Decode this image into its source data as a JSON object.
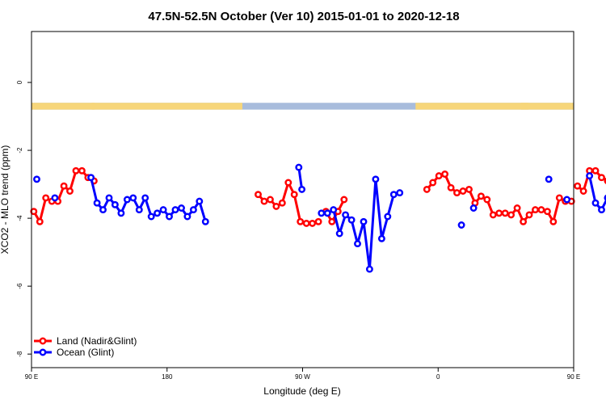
{
  "chart_data": {
    "type": "line",
    "title": "47.5N-52.5N October (Ver 10)   2015-01-01 to 2020-12-18",
    "xlabel": "Longitude (deg E)",
    "ylabel": "XCO2 - MLO trend (ppm)",
    "xlim": [
      90,
      450
    ],
    "ylim": [
      -8.4,
      1.5
    ],
    "x_ticks": [
      {
        "value": 90,
        "label": "90 E"
      },
      {
        "value": 180,
        "label": "180"
      },
      {
        "value": 270,
        "label": "90 W"
      },
      {
        "value": 360,
        "label": "0"
      },
      {
        "value": 450,
        "label": "90 E"
      },
      {
        "value": 540,
        "label": "180"
      }
    ],
    "y_ticks": [
      {
        "value": 0,
        "label": "0"
      },
      {
        "value": -2,
        "label": "-2"
      },
      {
        "value": -4,
        "label": "-4"
      },
      {
        "value": -6,
        "label": "-6"
      },
      {
        "value": -8,
        "label": "-8"
      }
    ],
    "legend_position": "bottom-left",
    "land_ocean_strip": {
      "y_range": [
        -0.8,
        -0.6
      ],
      "land_color": "#f7d67a",
      "ocean_color": "#a8bcdc",
      "land_segments": [
        [
          90,
          132
        ],
        [
          130,
          230
        ],
        [
          345,
          420
        ],
        [
          415,
          460
        ]
      ]
    },
    "series": [
      {
        "name": "Land (Nadir&Glint)",
        "color": "#ff0000",
        "segments": [
          [
            [
              91.5,
              -3.8
            ],
            [
              95.5,
              -4.1
            ],
            [
              99.5,
              -3.4
            ],
            [
              103.5,
              -3.5
            ],
            [
              107.5,
              -3.5
            ],
            [
              111.5,
              -3.05
            ],
            [
              115.5,
              -3.2
            ],
            [
              119.5,
              -2.6
            ],
            [
              123.5,
              -2.6
            ],
            [
              127.5,
              -2.8
            ],
            [
              131.5,
              -2.9
            ]
          ],
          [
            [
              240.5,
              -3.3
            ],
            [
              244.5,
              -3.5
            ],
            [
              248.5,
              -3.45
            ],
            [
              252.5,
              -3.65
            ],
            [
              256.5,
              -3.55
            ],
            [
              260.5,
              -2.95
            ],
            [
              264.5,
              -3.3
            ],
            [
              268.5,
              -4.1
            ],
            [
              272.5,
              -4.15
            ],
            [
              276.5,
              -4.15
            ],
            [
              280.5,
              -4.1
            ]
          ],
          [
            [
              285.5,
              -3.8
            ],
            [
              289.5,
              -4.1
            ],
            [
              293.5,
              -3.8
            ],
            [
              297.5,
              -3.45
            ]
          ],
          [
            [
              352.5,
              -3.15
            ],
            [
              356.5,
              -2.95
            ],
            [
              360.5,
              -2.75
            ],
            [
              364.5,
              -2.7
            ],
            [
              368.5,
              -3.1
            ],
            [
              372.5,
              -3.25
            ],
            [
              376.5,
              -3.2
            ],
            [
              380.5,
              -3.15
            ],
            [
              384.5,
              -3.55
            ],
            [
              388.5,
              -3.35
            ],
            [
              392.5,
              -3.45
            ],
            [
              396.5,
              -3.9
            ],
            [
              400.5,
              -3.85
            ],
            [
              404.5,
              -3.85
            ],
            [
              408.5,
              -3.9
            ],
            [
              412.5,
              -3.7
            ],
            [
              416.5,
              -4.1
            ],
            [
              420.5,
              -3.9
            ],
            [
              424.5,
              -3.75
            ],
            [
              428.5,
              -3.75
            ],
            [
              432.5,
              -3.8
            ],
            [
              436.5,
              -4.1
            ],
            [
              440.5,
              -3.4
            ],
            [
              444.5,
              -3.5
            ],
            [
              448.5,
              -3.5
            ]
          ],
          [
            [
              452.5,
              -3.05
            ],
            [
              456.5,
              -3.2
            ],
            [
              460.5,
              -2.6
            ],
            [
              464.5,
              -2.6
            ],
            [
              468.5,
              -2.8
            ],
            [
              472.5,
              -2.9
            ]
          ]
        ]
      },
      {
        "name": "Ocean (Glint)",
        "color": "#0000ff",
        "segments": [
          [
            [
              93.5,
              -2.85
            ]
          ],
          [
            [
              105.5,
              -3.4
            ]
          ],
          [
            [
              129.5,
              -2.8
            ],
            [
              133.5,
              -3.55
            ],
            [
              137.5,
              -3.75
            ],
            [
              141.5,
              -3.4
            ],
            [
              145.5,
              -3.6
            ],
            [
              149.5,
              -3.85
            ],
            [
              153.5,
              -3.45
            ],
            [
              157.5,
              -3.4
            ],
            [
              161.5,
              -3.75
            ],
            [
              165.5,
              -3.4
            ],
            [
              169.5,
              -3.95
            ],
            [
              173.5,
              -3.85
            ],
            [
              177.5,
              -3.75
            ],
            [
              181.5,
              -3.95
            ],
            [
              185.5,
              -3.75
            ],
            [
              189.5,
              -3.7
            ],
            [
              193.5,
              -3.95
            ],
            [
              197.5,
              -3.75
            ],
            [
              201.5,
              -3.5
            ],
            [
              205.5,
              -4.1
            ]
          ],
          [
            [
              267.5,
              -2.5
            ],
            [
              269.5,
              -3.15
            ]
          ],
          [
            [
              282.5,
              -3.85
            ],
            [
              286.5,
              -3.85
            ],
            [
              290.5,
              -3.75
            ],
            [
              294.5,
              -4.45
            ],
            [
              298.5,
              -3.9
            ],
            [
              302.5,
              -4.05
            ],
            [
              306.5,
              -4.75
            ],
            [
              310.5,
              -4.1
            ],
            [
              314.5,
              -5.5
            ],
            [
              318.5,
              -2.85
            ],
            [
              322.5,
              -4.6
            ],
            [
              326.5,
              -3.95
            ],
            [
              330.5,
              -3.3
            ],
            [
              334.5,
              -3.25
            ]
          ],
          [
            [
              375.5,
              -4.2
            ]
          ],
          [
            [
              383.5,
              -3.7
            ]
          ],
          [
            [
              433.5,
              -2.85
            ]
          ],
          [
            [
              445.5,
              -3.45
            ]
          ],
          [
            [
              460.5,
              -2.75
            ],
            [
              464.5,
              -3.55
            ],
            [
              468.5,
              -3.75
            ],
            [
              472.5,
              -3.4
            ],
            [
              476.5,
              -3.6
            ],
            [
              480.5,
              -3.85
            ],
            [
              484.5,
              -3.45
            ],
            [
              488.5,
              -3.4
            ]
          ]
        ]
      }
    ]
  }
}
